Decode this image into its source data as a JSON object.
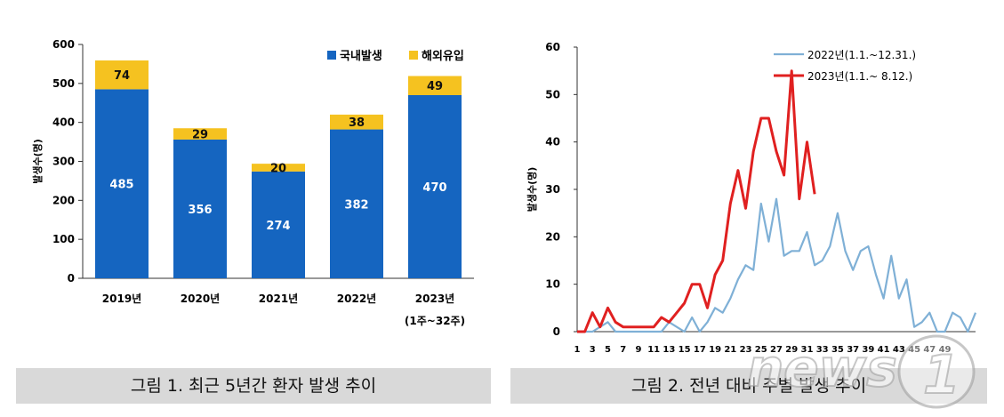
{
  "chart_data": [
    {
      "type": "bar",
      "stacked": true,
      "categories": [
        "2019년",
        "2020년",
        "2021년",
        "2022년",
        "2023년"
      ],
      "category_sublabels": [
        "",
        "",
        "",
        "",
        "(1주~32주)"
      ],
      "series": [
        {
          "name": "국내발생",
          "values": [
            485,
            356,
            274,
            382,
            470
          ],
          "color": "#1565c0"
        },
        {
          "name": "해외유입",
          "values": [
            74,
            29,
            20,
            38,
            49
          ],
          "color": "#f5c220"
        }
      ],
      "xlabel": "",
      "ylabel": "발생수(명)",
      "ylim": [
        0,
        600
      ],
      "yticks": [
        0,
        100,
        200,
        300,
        400,
        500,
        600
      ],
      "grid": false,
      "legend_position": "top-right",
      "caption": "그림 1. 최근 5년간 환자 발생 추이"
    },
    {
      "type": "line",
      "xlabel": "",
      "ylabel": "발생수(명)",
      "xlim": [
        1,
        53
      ],
      "ylim": [
        0,
        60
      ],
      "yticks": [
        0,
        10,
        20,
        30,
        40,
        50,
        60
      ],
      "xtick_labels": [
        "1",
        "3",
        "5",
        "7",
        "9",
        "11",
        "13",
        "15",
        "17",
        "19",
        "21",
        "23",
        "25",
        "27",
        "29",
        "31",
        "33",
        "35",
        "37",
        "39",
        "41",
        "43",
        "45",
        "47",
        "49"
      ],
      "grid": false,
      "legend_position": "top-right",
      "series": [
        {
          "name": "2022년(1.1.~12.31.)",
          "color": "#7fb0d6",
          "x": [
            1,
            2,
            3,
            4,
            5,
            6,
            7,
            8,
            9,
            10,
            11,
            12,
            13,
            14,
            15,
            16,
            17,
            18,
            19,
            20,
            21,
            22,
            23,
            24,
            25,
            26,
            27,
            28,
            29,
            30,
            31,
            32,
            33,
            34,
            35,
            36,
            37,
            38,
            39,
            40,
            41,
            42,
            43,
            44,
            45,
            46,
            47,
            48,
            49,
            50,
            51,
            52,
            53
          ],
          "y": [
            0,
            0,
            0,
            1,
            2,
            0,
            0,
            0,
            0,
            0,
            0,
            0,
            2,
            1,
            0,
            3,
            0,
            2,
            5,
            4,
            7,
            11,
            14,
            13,
            27,
            19,
            28,
            16,
            17,
            17,
            21,
            14,
            15,
            18,
            25,
            17,
            13,
            17,
            18,
            12,
            7,
            16,
            7,
            11,
            1,
            2,
            4,
            0,
            0,
            4,
            3,
            0,
            4
          ]
        },
        {
          "name": "2023년(1.1.~ 8.12.)",
          "color": "#e02020",
          "x": [
            1,
            2,
            3,
            4,
            5,
            6,
            7,
            8,
            9,
            10,
            11,
            12,
            13,
            14,
            15,
            16,
            17,
            18,
            19,
            20,
            21,
            22,
            23,
            24,
            25,
            26,
            27,
            28,
            29,
            30,
            31,
            32
          ],
          "y": [
            0,
            0,
            4,
            1,
            5,
            2,
            1,
            1,
            1,
            1,
            1,
            3,
            2,
            4,
            6,
            10,
            10,
            5,
            12,
            15,
            27,
            34,
            26,
            38,
            45,
            45,
            38,
            33,
            55,
            28,
            40,
            29
          ]
        }
      ],
      "caption": "그림 2. 전년 대비 주별 발생 추이"
    }
  ]
}
